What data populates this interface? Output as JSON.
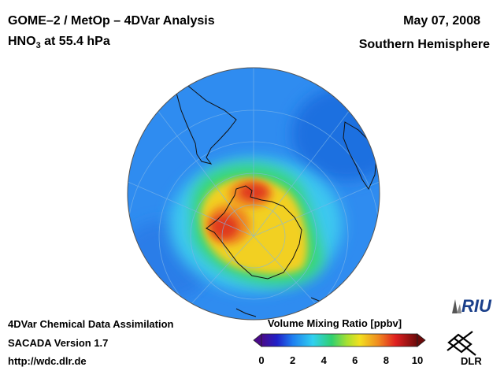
{
  "header": {
    "title": "GOME–2 / MetOp – 4DVar Analysis",
    "species": "HNO",
    "species_sub": "3",
    "level": " at 55.4 hPa",
    "date": "May 07, 2008",
    "region": "Southern Hemisphere"
  },
  "footer": {
    "line1": "4DVar Chemical Data Assimilation",
    "line2": "SACADA Version 1.7",
    "line3": "http://wdc.dlr.de"
  },
  "colorbar": {
    "title": "Volume Mixing Ratio [ppbv]",
    "min": 0,
    "max": 10,
    "ticks": [
      "0",
      "2",
      "4",
      "6",
      "8",
      "10"
    ]
  },
  "logos": {
    "riu": "RIU",
    "dlr": "DLR"
  },
  "colors": {
    "background": "#ffffff",
    "globe_base": "#2f8cf0",
    "high": "#e03a1c",
    "mid": "#f2d020"
  }
}
